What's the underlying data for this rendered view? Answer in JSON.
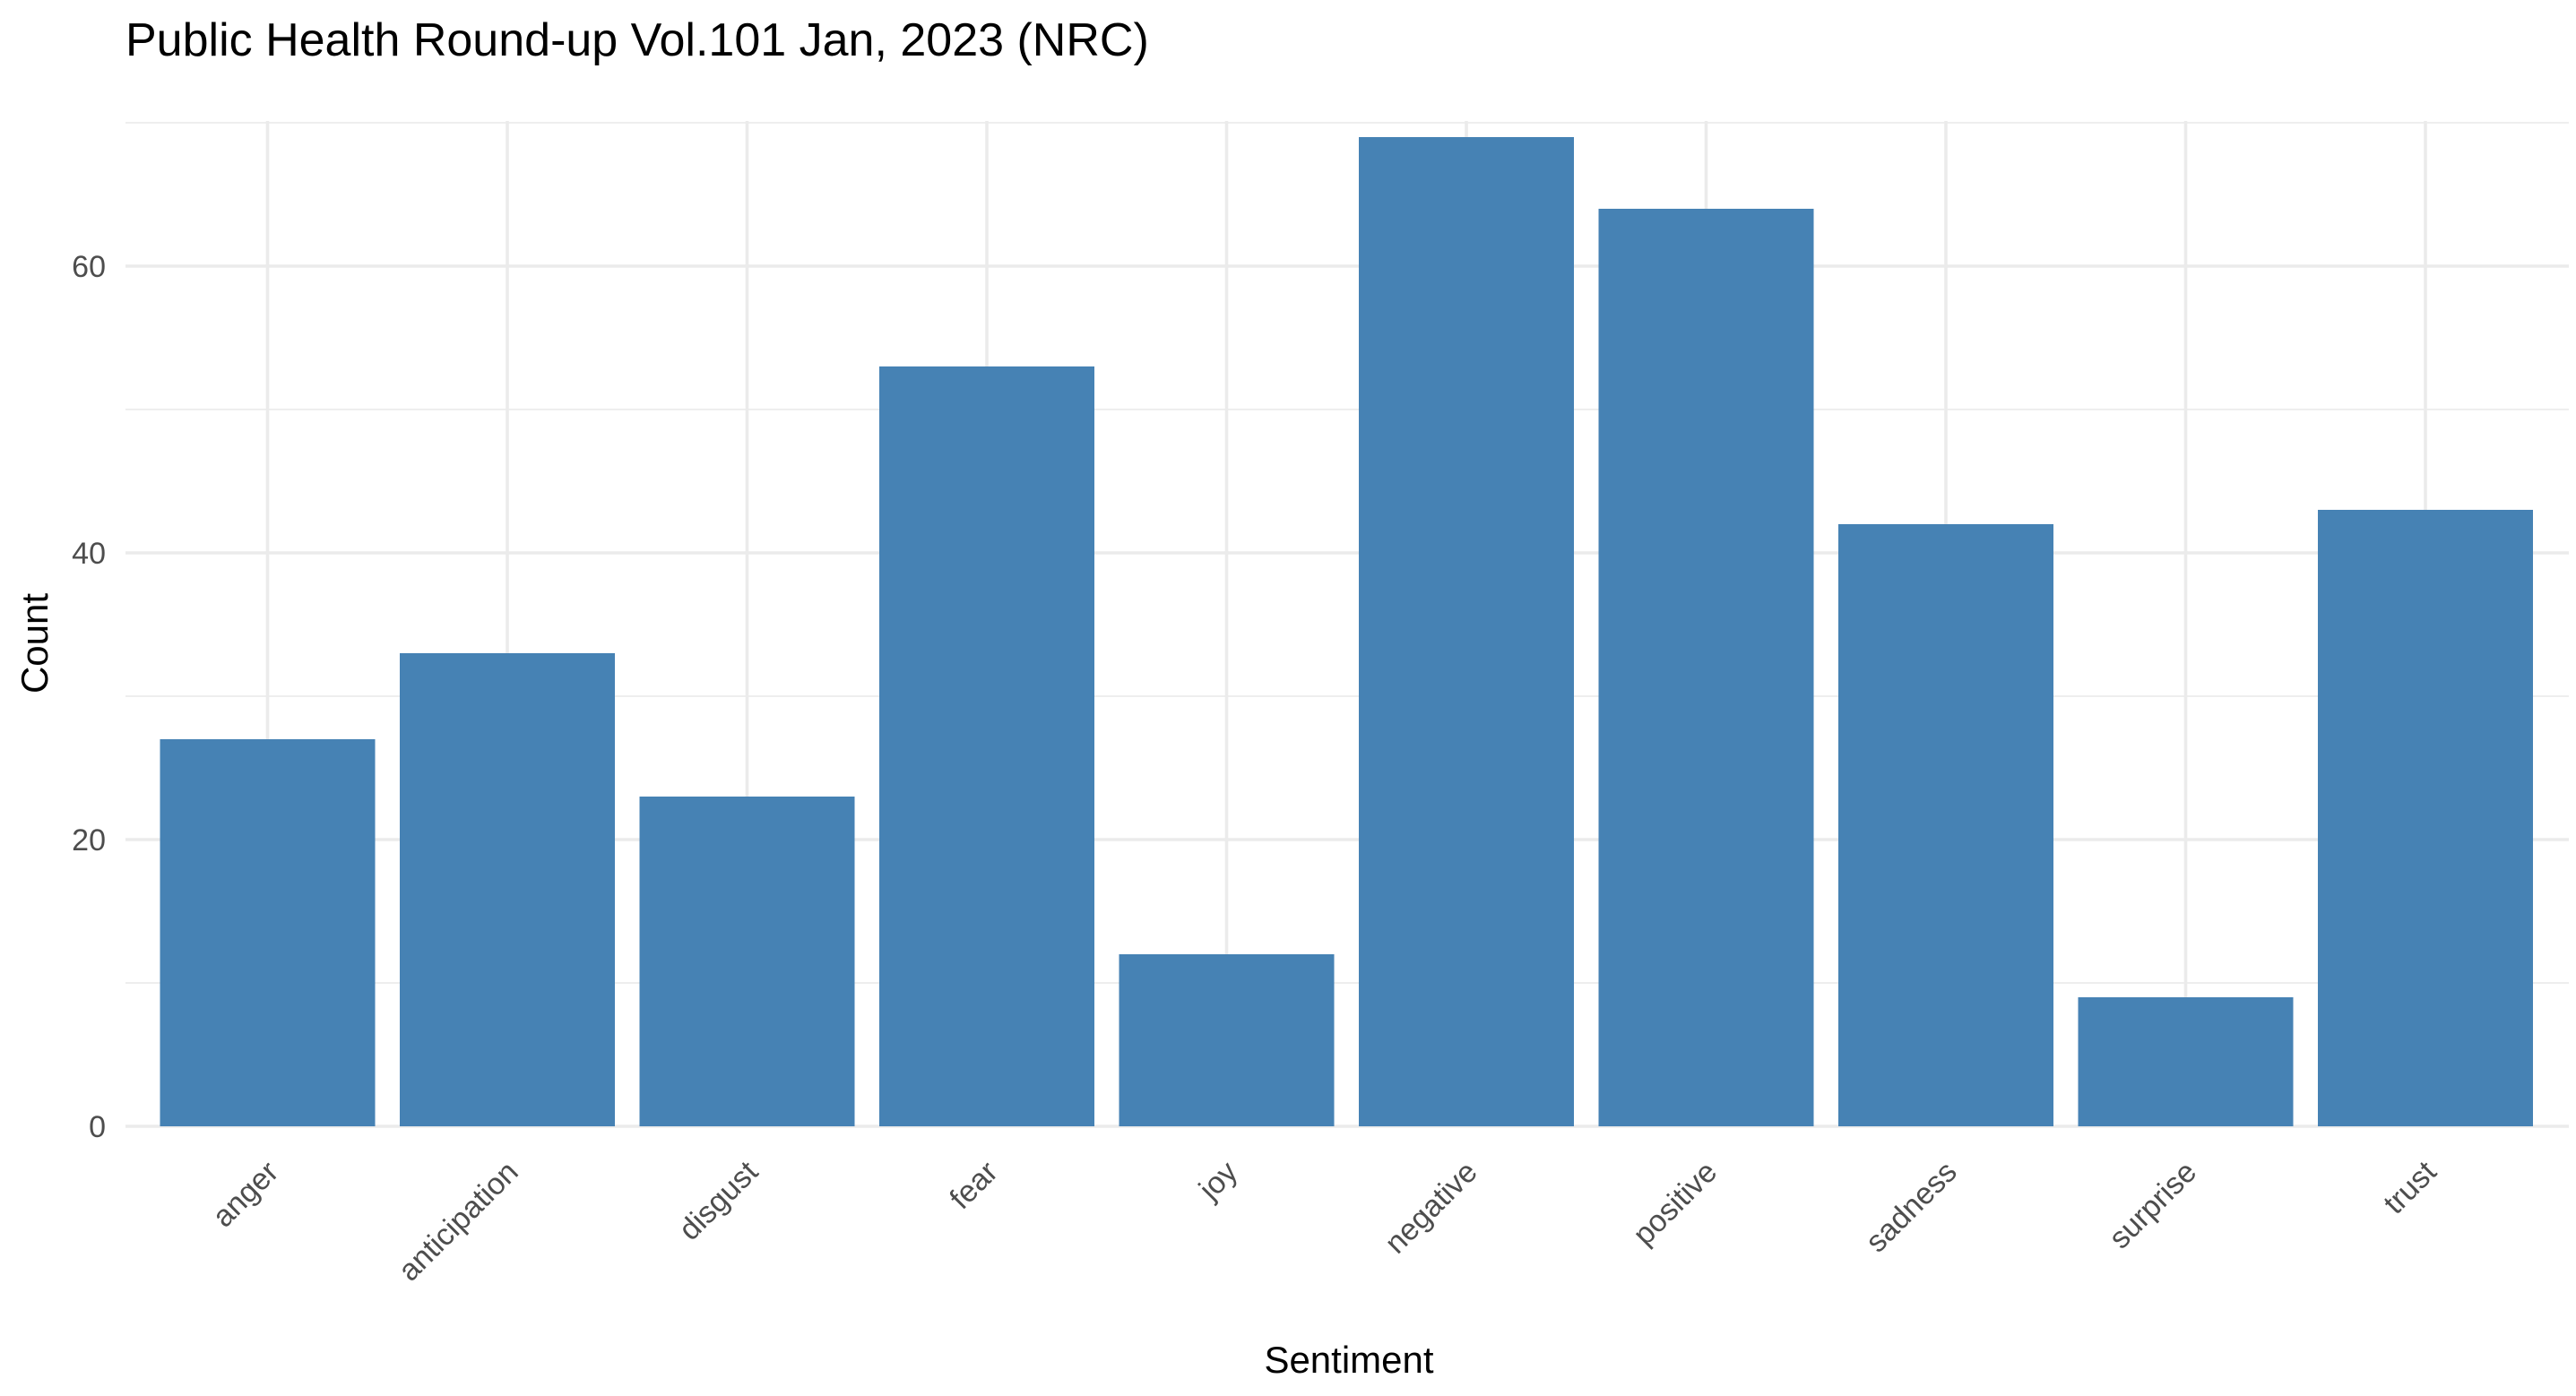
{
  "chart_data": {
    "type": "bar",
    "title": "Public Health Round-up Vol.101 Jan, 2023 (NRC)",
    "xlabel": "Sentiment",
    "ylabel": "Count",
    "categories": [
      "anger",
      "anticipation",
      "disgust",
      "fear",
      "joy",
      "negative",
      "positive",
      "sadness",
      "surprise",
      "trust"
    ],
    "values": [
      27,
      33,
      23,
      53,
      12,
      69,
      64,
      42,
      9,
      43
    ],
    "ylim": [
      0,
      72
    ],
    "yticks": [
      0,
      20,
      40,
      60
    ],
    "ytick_labels": [
      "0",
      "20",
      "40",
      "60"
    ],
    "grid": true,
    "legend": "none",
    "bar_color": "#4682b4"
  }
}
